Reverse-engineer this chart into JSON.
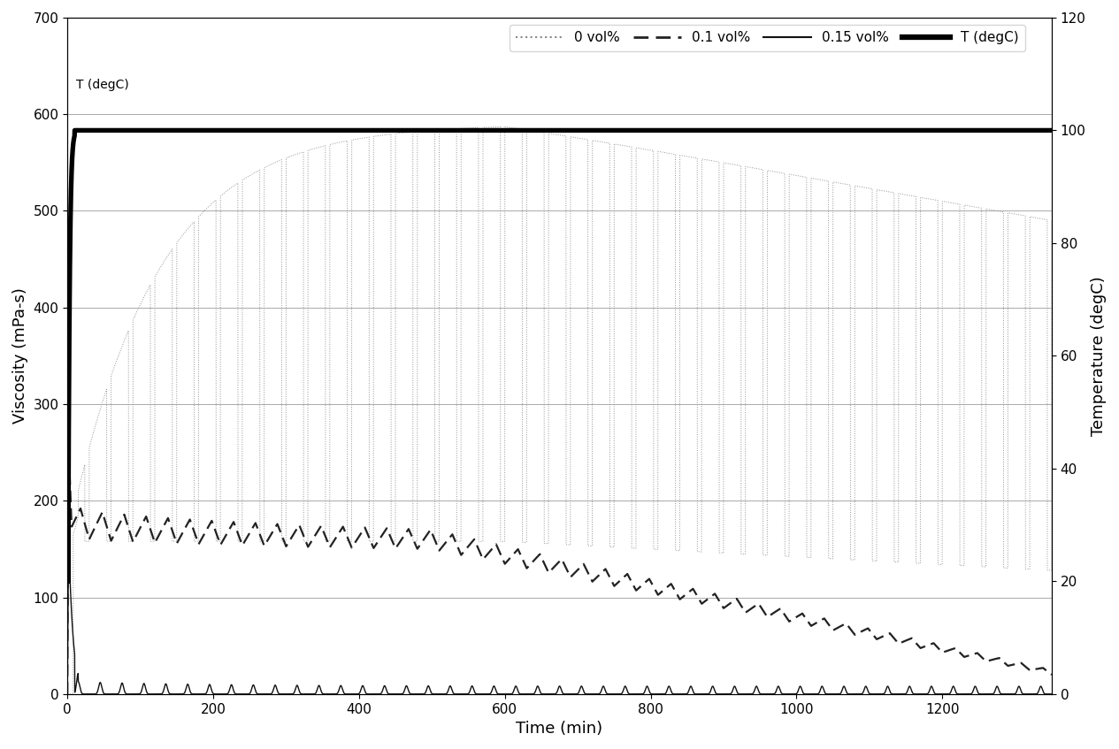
{
  "xlabel": "Time (min)",
  "ylabel_left": "Viscosity (mPa-s)",
  "ylabel_right": "Temperature (degC)",
  "xlim": [
    0,
    1350
  ],
  "ylim_left": [
    0,
    700
  ],
  "ylim_right": [
    0,
    120
  ],
  "yticks_left": [
    0,
    100,
    200,
    300,
    400,
    500,
    600,
    700
  ],
  "yticks_right": [
    0,
    20,
    40,
    60,
    80,
    100,
    120
  ],
  "xticks": [
    0,
    200,
    400,
    600,
    800,
    1000,
    1200
  ],
  "legend_entries": [
    "0 vol%",
    "0.1 vol%",
    "0.15 vol%",
    "T (degC)"
  ],
  "t_label": "T (degC)",
  "background_color": "#ffffff",
  "temp_color": "#000000",
  "vol0_color": "#888888",
  "vol01_color": "#222222",
  "vol015_color": "#111111"
}
